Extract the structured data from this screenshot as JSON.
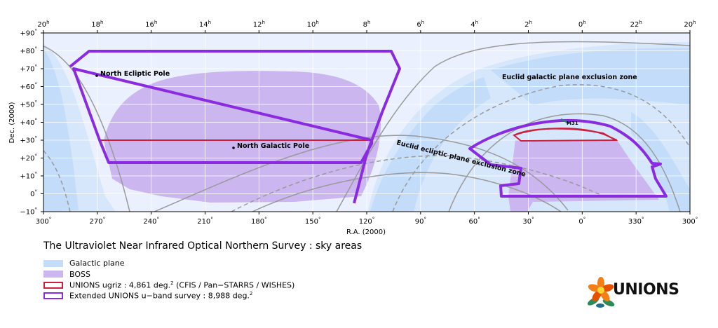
{
  "map": {
    "ra_hours": [
      "20",
      "18",
      "16",
      "14",
      "12",
      "10",
      "8",
      "6",
      "4",
      "2",
      "0",
      "22",
      "20"
    ],
    "hour_sup": "h",
    "ra_degrees": [
      "300",
      "270",
      "240",
      "210",
      "180",
      "150",
      "120",
      "90",
      "60",
      "30",
      "0",
      "330",
      "300"
    ],
    "deg_sup": "°",
    "dec_ticks": [
      "+90",
      "+80",
      "+70",
      "+60",
      "+50",
      "+40",
      "+30",
      "+20",
      "+10",
      "0",
      "−10"
    ],
    "x_label": "R.A. (2000)",
    "y_label": "Dec. (2000)",
    "annotations": {
      "north_ecliptic_pole": "North Ecliptic Pole",
      "north_galactic_pole": "North Galactic Pole",
      "galactic_exclusion": "Euclid galactic plane exclusion zone",
      "ecliptic_exclusion": "Euclid ecliptic plane exclusion zone",
      "m31": "M31"
    }
  },
  "title": "The Ultraviolet Near Infrared Optical Northern Survey : sky areas",
  "legend": [
    {
      "label": "Galactic plane",
      "color": "#c2dcfa",
      "kind": "fill"
    },
    {
      "label": "BOSS",
      "color": "#cbb6f0",
      "kind": "fill"
    },
    {
      "label": "UNIONS ugriz : 4,861 deg.",
      "sup": "2",
      "suffix": " (CFIS / Pan−STARRS / WISHES)",
      "color": "#cc1f3d",
      "kind": "outline"
    },
    {
      "label": "Extended UNIONS u−band survey : 8,988 deg.",
      "sup": "2",
      "suffix": "",
      "color": "#8a2be2",
      "kind": "outline"
    }
  ],
  "colors": {
    "background": "#eaf0fd",
    "galactic_light": "#d6e6fb",
    "galactic_dark": "#c2dcfa",
    "boss": "#cbb6f0",
    "ugriz": "#cc1f3d",
    "uband": "#8a2be2",
    "curves": "#9a9a9a"
  },
  "logo": {
    "text": "UNIONS",
    "icon": "flower-icon"
  }
}
